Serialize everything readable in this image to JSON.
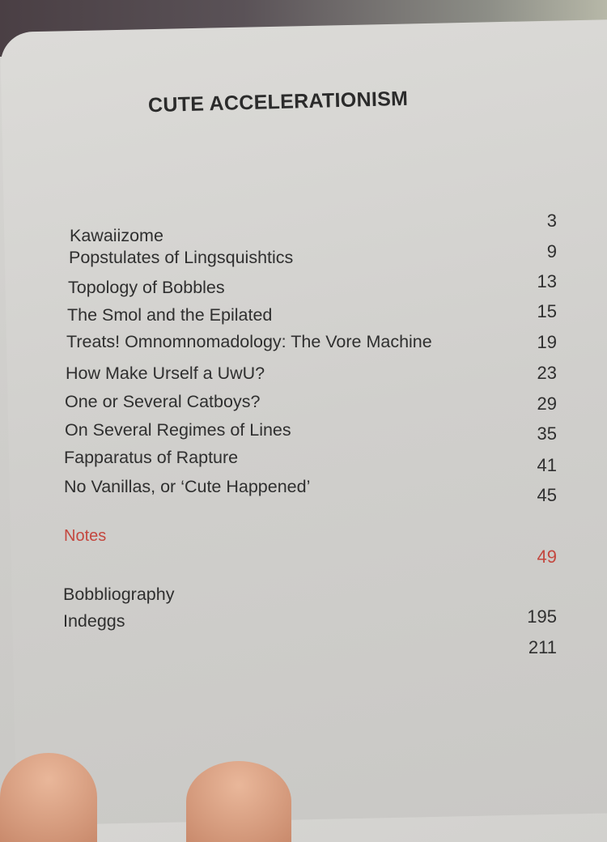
{
  "title": "CUTE ACCELERATIONISM",
  "contents": [
    {
      "title": "Kawaiizome",
      "page": "3"
    },
    {
      "title": "Popstulates of Lingsquishtics",
      "page": "9"
    },
    {
      "title": "Topology of Bobbles",
      "page": "13"
    },
    {
      "title": "The Smol and the Epilated",
      "page": "15"
    },
    {
      "title": "Treats! Omnomnomadology: The Vore Machine",
      "page": "19"
    },
    {
      "title": "How Make Urself a UwU?",
      "page": "23"
    },
    {
      "title": "One or Several Catboys?",
      "page": "29"
    },
    {
      "title": "On Several Regimes of Lines",
      "page": "35"
    },
    {
      "title": "Fapparatus of Rapture",
      "page": "41"
    },
    {
      "title": "No Vanillas, or ‘Cute Happened’",
      "page": "45"
    }
  ],
  "back_matter": [
    {
      "title": "Notes",
      "page": "49",
      "color": "#c4473f"
    },
    {
      "title": "Bobbliography",
      "page": "195"
    },
    {
      "title": "Indeggs",
      "page": "211"
    }
  ]
}
